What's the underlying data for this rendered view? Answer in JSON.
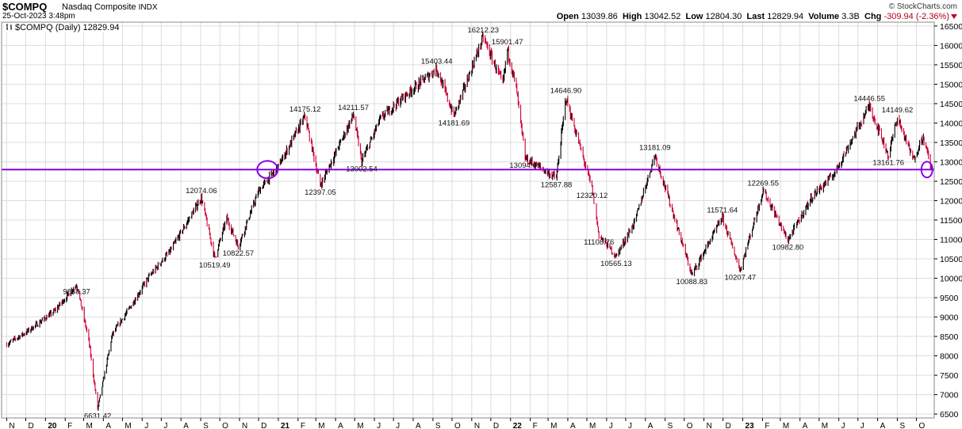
{
  "header": {
    "symbol": "$COMPQ",
    "name": "Nasdaq Composite",
    "exchange": "INDX",
    "date": "25-Oct-2023 3:48pm",
    "brand": "© StockCharts.com",
    "open_label": "Open",
    "open": "13039.86",
    "high_label": "High",
    "high": "13042.52",
    "low_label": "Low",
    "low": "12804.30",
    "last_label": "Last",
    "last": "12829.94",
    "volume_label": "Volume",
    "volume": "3.3B",
    "chg_label": "Chg",
    "chg": "-309.94 (-2.36%)"
  },
  "legend": {
    "text": "$COMPQ (Daily) 12829.94"
  },
  "colors": {
    "up": "#000000",
    "down": "#cc0033",
    "line": "#8a00e6",
    "grid": "#dddddd",
    "neg": "#b0001e"
  },
  "chart_data": {
    "type": "line",
    "title": "$COMPQ (Daily) 12829.94",
    "ylim": [
      6400,
      16600
    ],
    "yticks": [
      6500,
      7000,
      7500,
      8000,
      8500,
      9000,
      9500,
      10000,
      10500,
      11000,
      11500,
      12000,
      12500,
      13000,
      13500,
      14000,
      14500,
      15000,
      15500,
      16000,
      16500
    ],
    "grid": true,
    "horizontal_line": 12800,
    "xticks": [
      "N",
      "D",
      "20",
      "F",
      "M",
      "A",
      "M",
      "J",
      "J",
      "A",
      "S",
      "O",
      "N",
      "D",
      "21",
      "F",
      "M",
      "A",
      "M",
      "J",
      "J",
      "A",
      "S",
      "O",
      "N",
      "D",
      "22",
      "F",
      "M",
      "A",
      "M",
      "J",
      "J",
      "A",
      "S",
      "O",
      "N",
      "D",
      "23",
      "F",
      "M",
      "A",
      "M",
      "J",
      "J",
      "A",
      "S",
      "O"
    ],
    "series": [
      {
        "x": [
          "2019-11-01",
          "2019-12-01",
          "2020-01-15",
          "2020-02-19",
          "2020-03-09",
          "2020-03-23",
          "2020-04-15",
          "2020-05-15",
          "2020-06-10",
          "2020-07-15",
          "2020-09-02",
          "2020-09-23",
          "2020-10-12",
          "2020-10-30",
          "2020-12-01",
          "2020-12-31",
          "2021-02-12",
          "2021-03-08",
          "2021-04-29",
          "2021-05-12",
          "2021-06-10",
          "2021-07-15",
          "2021-09-07",
          "2021-10-04",
          "2021-11-19",
          "2021-12-20",
          "2021-12-27",
          "2022-01-10",
          "2022-01-24",
          "2022-03-14",
          "2022-03-29",
          "2022-05-09",
          "2022-05-20",
          "2022-06-16",
          "2022-07-15",
          "2022-08-16",
          "2022-09-15",
          "2022-10-13",
          "2022-11-30",
          "2022-12-28",
          "2023-02-02",
          "2023-03-13",
          "2023-04-20",
          "2023-05-25",
          "2023-07-19",
          "2023-08-18",
          "2023-09-01",
          "2023-09-26",
          "2023-10-11",
          "2023-10-25"
        ],
        "values": [
          8300,
          8600,
          9150,
          9838.37,
          8400,
          6631.42,
          8550,
          9300,
          10000,
          10700,
          12074.06,
          10519.49,
          11550,
          10822.57,
          12250,
          12850,
          14175.12,
          12397.05,
          14211.57,
          13002.54,
          14100,
          14650,
          15403.44,
          14181.69,
          16212.23,
          15000,
          15901.47,
          14900,
          13094.65,
          12587.88,
          14646.9,
          12320.12,
          11108.76,
          10565.13,
          11450,
          13181.09,
          11600,
          10088.83,
          11571.64,
          10207.47,
          12269.55,
          10982.8,
          12100,
          12700,
          14446.55,
          13161.76,
          14149.62,
          13050,
          13650,
          12829.94
        ]
      }
    ],
    "annotations": [
      {
        "x": "2020-02-19",
        "y": 9838.37,
        "label": "9838.37"
      },
      {
        "x": "2020-03-23",
        "y": 6631.42,
        "label": "6631.42"
      },
      {
        "x": "2020-09-02",
        "y": 12074.06,
        "label": "12074.06"
      },
      {
        "x": "2020-09-23",
        "y": 10519.49,
        "label": "10519.49"
      },
      {
        "x": "2020-10-30",
        "y": 10822.57,
        "label": "10822.57"
      },
      {
        "x": "2021-02-12",
        "y": 14175.12,
        "label": "14175.12"
      },
      {
        "x": "2021-03-08",
        "y": 12397.05,
        "label": "12397.05"
      },
      {
        "x": "2021-04-29",
        "y": 14211.57,
        "label": "14211.57"
      },
      {
        "x": "2021-05-12",
        "y": 13002.54,
        "label": "13002.54"
      },
      {
        "x": "2021-09-07",
        "y": 15403.44,
        "label": "15403.44"
      },
      {
        "x": "2021-10-04",
        "y": 14181.69,
        "label": "14181.69"
      },
      {
        "x": "2021-11-19",
        "y": 16212.23,
        "label": "16212.23"
      },
      {
        "x": "2021-12-27",
        "y": 15901.47,
        "label": "15901.47"
      },
      {
        "x": "2022-01-24",
        "y": 13094.65,
        "label": "13094.65"
      },
      {
        "x": "2022-03-14",
        "y": 12587.88,
        "label": "12587.88"
      },
      {
        "x": "2022-03-29",
        "y": 14646.9,
        "label": "14646.90"
      },
      {
        "x": "2022-05-09",
        "y": 12320.12,
        "label": "12320.12"
      },
      {
        "x": "2022-05-20",
        "y": 11108.76,
        "label": "11108.76"
      },
      {
        "x": "2022-06-16",
        "y": 10565.13,
        "label": "10565.13"
      },
      {
        "x": "2022-08-16",
        "y": 13181.09,
        "label": "13181.09"
      },
      {
        "x": "2022-10-13",
        "y": 10088.83,
        "label": "10088.83"
      },
      {
        "x": "2022-11-30",
        "y": 11571.64,
        "label": "11571.64"
      },
      {
        "x": "2022-12-28",
        "y": 10207.47,
        "label": "10207.47"
      },
      {
        "x": "2023-02-02",
        "y": 12269.55,
        "label": "12269.55"
      },
      {
        "x": "2023-03-13",
        "y": 10982.8,
        "label": "10982.80"
      },
      {
        "x": "2023-07-19",
        "y": 14446.55,
        "label": "14446.55"
      },
      {
        "x": "2023-08-18",
        "y": 13161.76,
        "label": "13161.76"
      },
      {
        "x": "2023-09-01",
        "y": 14149.62,
        "label": "14149.62"
      }
    ],
    "highlight_circles": [
      {
        "x": "2020-12-15",
        "y": 12800
      },
      {
        "x": "2023-10-25",
        "y": 12800
      }
    ]
  }
}
